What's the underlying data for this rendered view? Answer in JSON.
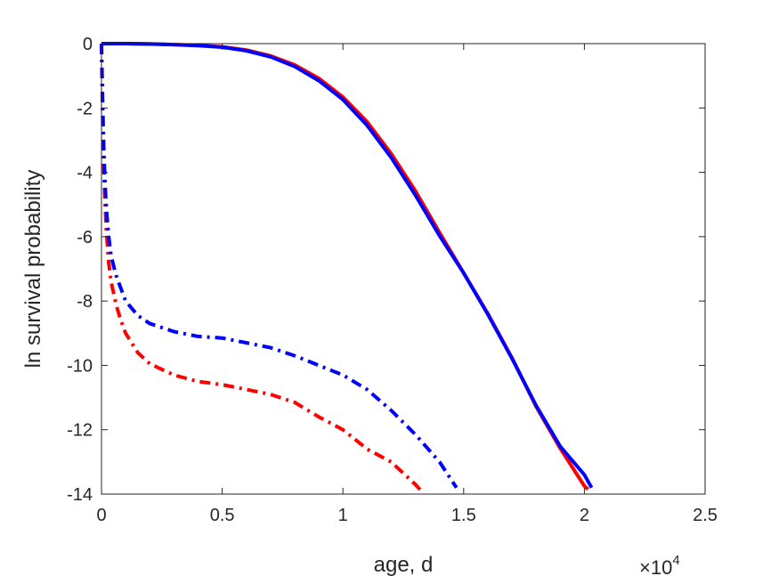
{
  "chart_data": {
    "type": "line",
    "xlabel": "age, d",
    "ylabel": "ln survival probability",
    "x_multiplier": {
      "base": "×10",
      "exponent": "4"
    },
    "xlim": [
      0,
      25000
    ],
    "ylim": [
      -14,
      0
    ],
    "xticks": [
      0,
      5000,
      10000,
      15000,
      20000,
      25000
    ],
    "xtick_labels": [
      "0",
      "0.5",
      "1",
      "1.5",
      "2",
      "2.5"
    ],
    "yticks": [
      0,
      -2,
      -4,
      -6,
      -8,
      -10,
      -12,
      -14
    ],
    "ytick_labels": [
      "0",
      "-2",
      "-4",
      "-6",
      "-8",
      "-10",
      "-12",
      "-14"
    ],
    "grid": false,
    "series": [
      {
        "color": "#ff0000",
        "style": "solid",
        "x": [
          0,
          1000,
          2000,
          3000,
          4000,
          5000,
          6000,
          7000,
          8000,
          9000,
          10000,
          11000,
          12000,
          13000,
          14000,
          15000,
          16000,
          17000,
          18000,
          19000,
          20000,
          20150
        ],
        "y": [
          0,
          0,
          -0.01,
          -0.03,
          -0.05,
          -0.1,
          -0.2,
          -0.38,
          -0.66,
          -1.08,
          -1.66,
          -2.43,
          -3.42,
          -4.58,
          -5.87,
          -7.13,
          -8.39,
          -9.76,
          -11.28,
          -12.58,
          -13.75,
          -13.85
        ]
      },
      {
        "color": "#0000ff",
        "style": "solid",
        "x": [
          0,
          1000,
          2000,
          3000,
          4000,
          5000,
          6000,
          7000,
          8000,
          9000,
          10000,
          11000,
          12000,
          13000,
          14000,
          15000,
          16000,
          17000,
          18000,
          19000,
          20000,
          20300
        ],
        "y": [
          0,
          0,
          -0.01,
          -0.03,
          -0.06,
          -0.11,
          -0.22,
          -0.41,
          -0.71,
          -1.15,
          -1.74,
          -2.54,
          -3.54,
          -4.71,
          -5.97,
          -7.13,
          -8.41,
          -9.78,
          -11.25,
          -12.52,
          -13.4,
          -13.8
        ]
      },
      {
        "color": "#ff0000",
        "style": "dashdot",
        "x": [
          0,
          50,
          100,
          150,
          200,
          300,
          400,
          600,
          800,
          1000,
          1500,
          2000,
          3000,
          4000,
          5000,
          6000,
          7000,
          8000,
          9000,
          10000,
          11000,
          12000,
          13000,
          13300
        ],
        "y": [
          0,
          -2.6,
          -4.0,
          -5.0,
          -5.8,
          -6.8,
          -7.4,
          -8.1,
          -8.6,
          -9.0,
          -9.6,
          -9.95,
          -10.3,
          -10.5,
          -10.6,
          -10.75,
          -10.9,
          -11.15,
          -11.6,
          -12.0,
          -12.6,
          -13.0,
          -13.7,
          -13.95
        ]
      },
      {
        "color": "#0000ff",
        "style": "dashdot",
        "x": [
          0,
          50,
          100,
          150,
          200,
          300,
          400,
          600,
          800,
          1000,
          1500,
          2000,
          3000,
          4000,
          5000,
          6000,
          7000,
          8000,
          9000,
          10000,
          11000,
          12000,
          13000,
          14000,
          14700
        ],
        "y": [
          0,
          -2.0,
          -3.4,
          -4.4,
          -5.1,
          -6.0,
          -6.6,
          -7.2,
          -7.6,
          -8.0,
          -8.45,
          -8.7,
          -8.95,
          -9.1,
          -9.15,
          -9.3,
          -9.45,
          -9.7,
          -10.0,
          -10.3,
          -10.75,
          -11.4,
          -12.15,
          -13.0,
          -13.8
        ]
      }
    ]
  }
}
